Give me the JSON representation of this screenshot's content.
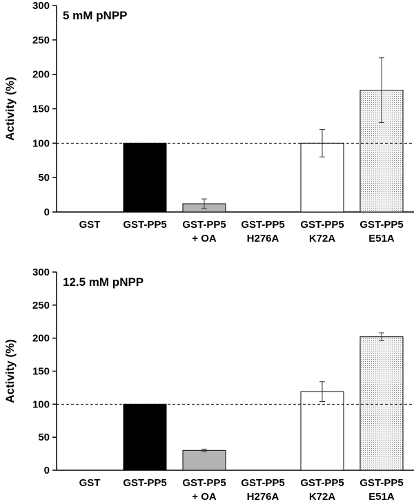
{
  "colors": {
    "solid_black": "#000000",
    "gray": "#b3b3b3",
    "white": "#ffffff",
    "dotted": "#e6e6e6"
  },
  "chart_data": [
    {
      "type": "bar",
      "title": "5 mM pNPP",
      "ylabel": "Activity (%)",
      "ylim": [
        0,
        300
      ],
      "yticks": [
        "0",
        "50",
        "100",
        "150",
        "200",
        "250",
        "300"
      ],
      "reference_line": 100,
      "categories": [
        [
          "GST"
        ],
        [
          "GST-PP5"
        ],
        [
          "GST-PP5",
          "+ OA"
        ],
        [
          "GST-PP5",
          "H276A"
        ],
        [
          "GST-PP5",
          "K72A"
        ],
        [
          "GST-PP5",
          "E51A"
        ]
      ],
      "values": [
        0,
        100,
        12,
        0,
        100,
        177
      ],
      "errors": [
        0,
        0,
        7,
        0,
        20,
        47
      ],
      "fills": [
        "white",
        "solid_black",
        "gray",
        "white",
        "white",
        "dotted"
      ]
    },
    {
      "type": "bar",
      "title": "12.5 mM pNPP",
      "ylabel": "Activity (%)",
      "ylim": [
        0,
        300
      ],
      "yticks": [
        "0",
        "50",
        "100",
        "150",
        "200",
        "250",
        "300"
      ],
      "reference_line": 100,
      "categories": [
        [
          "GST"
        ],
        [
          "GST-PP5"
        ],
        [
          "GST-PP5",
          "+ OA"
        ],
        [
          "GST-PP5",
          "H276A"
        ],
        [
          "GST-PP5",
          "K72A"
        ],
        [
          "GST-PP5",
          "E51A"
        ]
      ],
      "values": [
        0,
        100,
        30,
        0,
        119,
        202
      ],
      "errors": [
        0,
        0,
        2,
        0,
        15,
        6
      ],
      "fills": [
        "white",
        "solid_black",
        "gray",
        "white",
        "white",
        "dotted"
      ]
    }
  ]
}
